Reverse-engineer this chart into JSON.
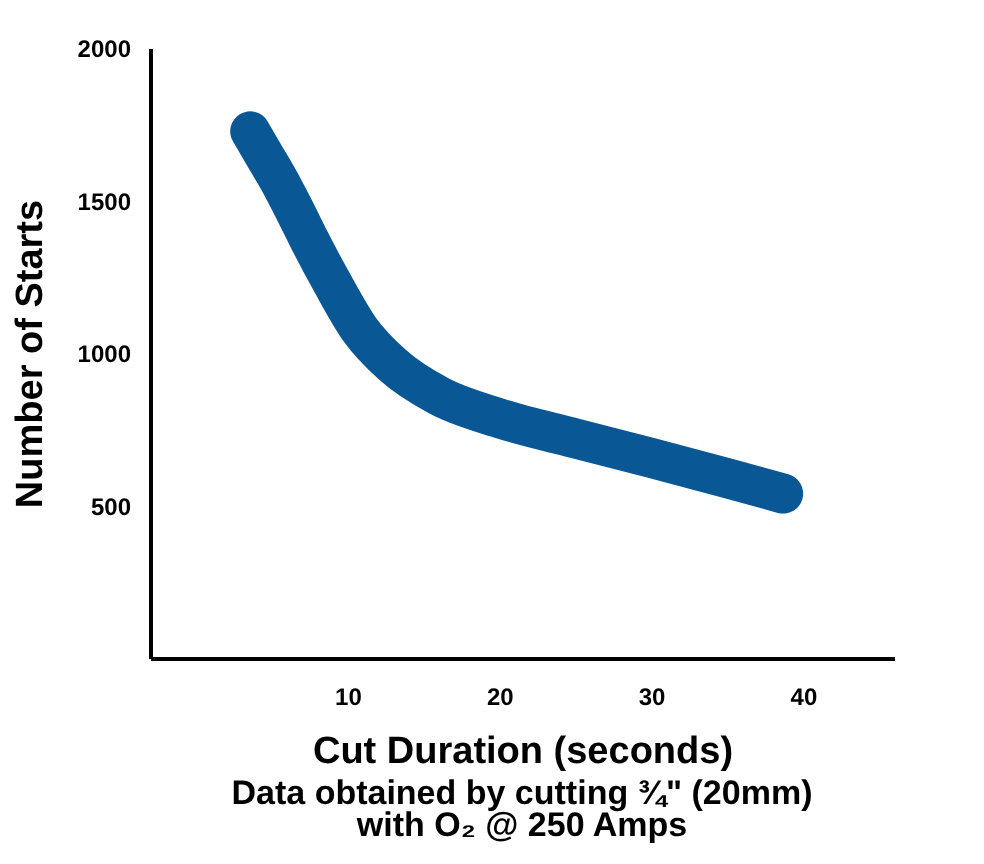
{
  "chart_data": {
    "type": "line",
    "xlabel": "Cut Duration (seconds)",
    "ylabel": "Number of Starts",
    "x": [
      3.6,
      4.5,
      5.5,
      6.5,
      7.5,
      9,
      10.8,
      13,
      16,
      20,
      25,
      30,
      35,
      38.7
    ],
    "series": [
      {
        "color": "#0a5796",
        "values": [
          1727,
          1650,
          1565,
          1470,
          1370,
          1230,
          1078,
          960,
          860,
          786,
          720,
          656,
          590,
          539
        ]
      }
    ],
    "xlim": [
      -3,
      46
    ],
    "ylim": [
      0,
      2000
    ],
    "xticks": [
      10,
      20,
      30,
      40
    ],
    "yticks": [
      500,
      1000,
      1500,
      2000
    ],
    "grid": false,
    "line_style": "solid",
    "annotations": [
      "Data obtained by cutting ¾\" (20mm)",
      "with O₂ @ 250 Amps"
    ]
  }
}
